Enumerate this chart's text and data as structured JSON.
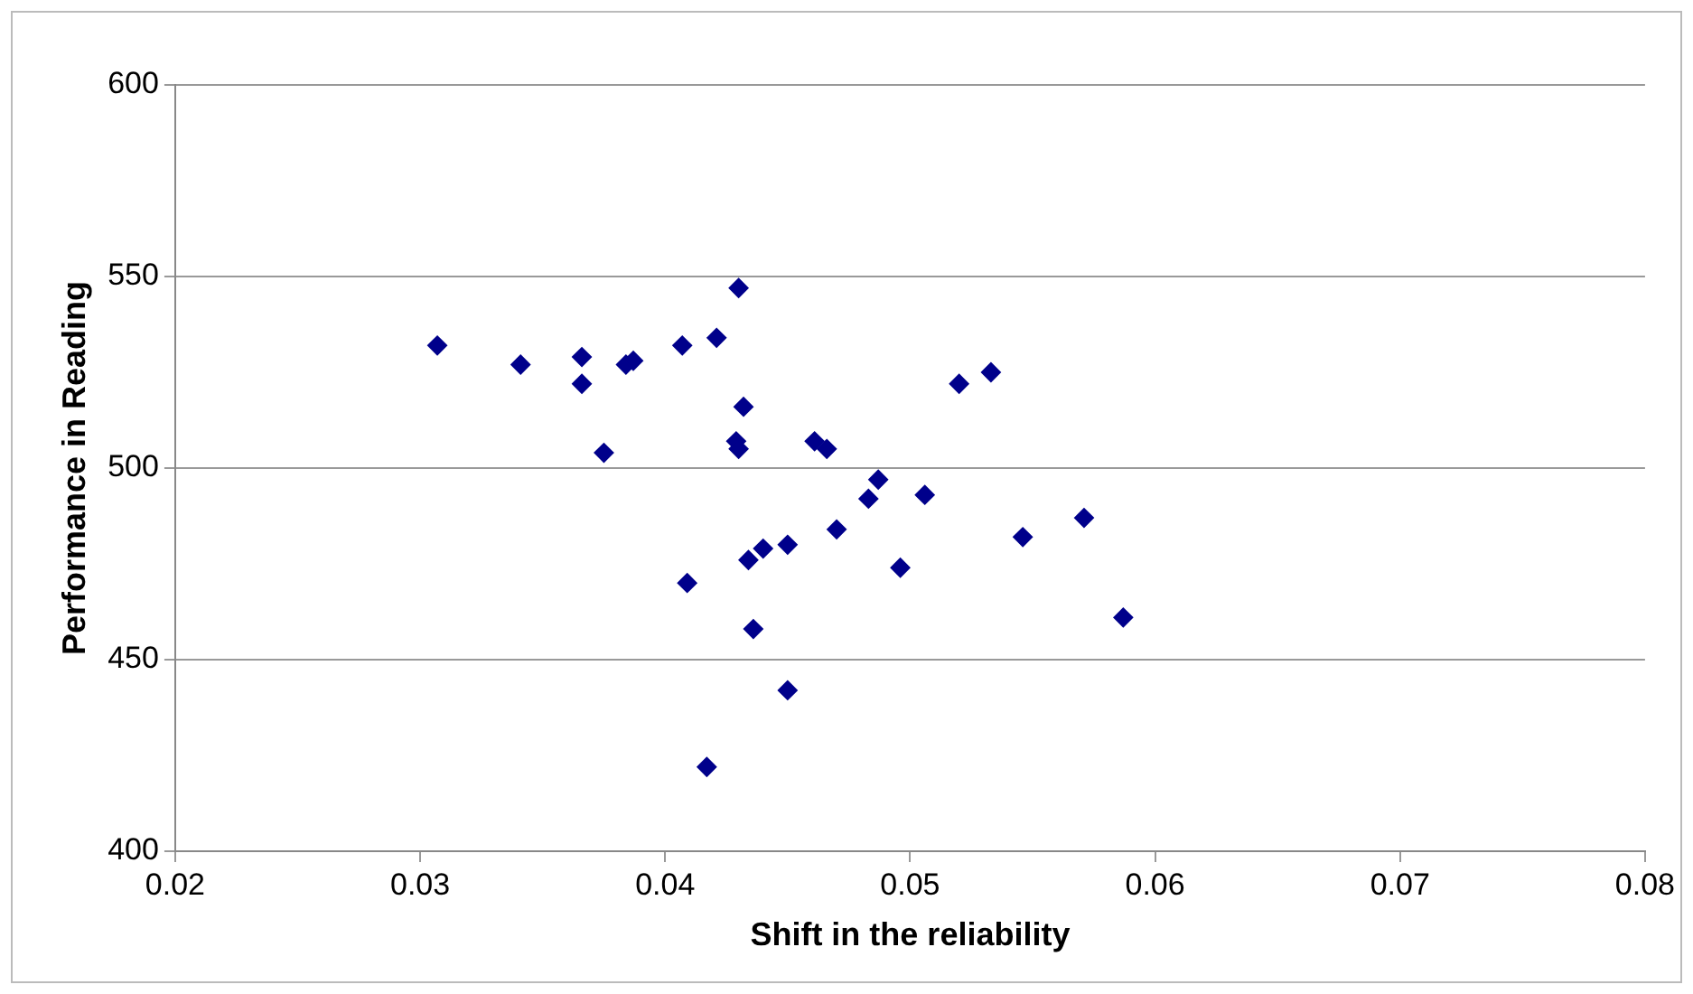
{
  "chart_data": {
    "type": "scatter",
    "xlabel": "Shift in the reliability",
    "ylabel": "Performance in Reading",
    "xlim": [
      0.02,
      0.08
    ],
    "xticks": [
      0.02,
      0.03,
      0.04,
      0.05,
      0.06,
      0.07,
      0.08
    ],
    "ylim": [
      400,
      600
    ],
    "yticks": [
      400,
      450,
      500,
      550,
      600
    ],
    "grid": "y",
    "legend": false,
    "marker": "diamond",
    "series": [
      {
        "color": "#00008b",
        "x": [
          0.0307,
          0.0341,
          0.0366,
          0.0366,
          0.0375,
          0.0384,
          0.0387,
          0.0407,
          0.0421,
          0.043,
          0.0432,
          0.0429,
          0.043,
          0.0461,
          0.0466,
          0.047,
          0.045,
          0.044,
          0.0434,
          0.0409,
          0.0436,
          0.045,
          0.0417,
          0.0483,
          0.0487,
          0.0496,
          0.0506,
          0.0546,
          0.0571,
          0.0587,
          0.052,
          0.0533
        ],
        "values": [
          532,
          527,
          529,
          522,
          504,
          527,
          528,
          532,
          534,
          547,
          516,
          507,
          505,
          507,
          505,
          484,
          480,
          479,
          476,
          470,
          458,
          442,
          422,
          492,
          497,
          474,
          493,
          482,
          487,
          461,
          522,
          525
        ]
      }
    ]
  }
}
